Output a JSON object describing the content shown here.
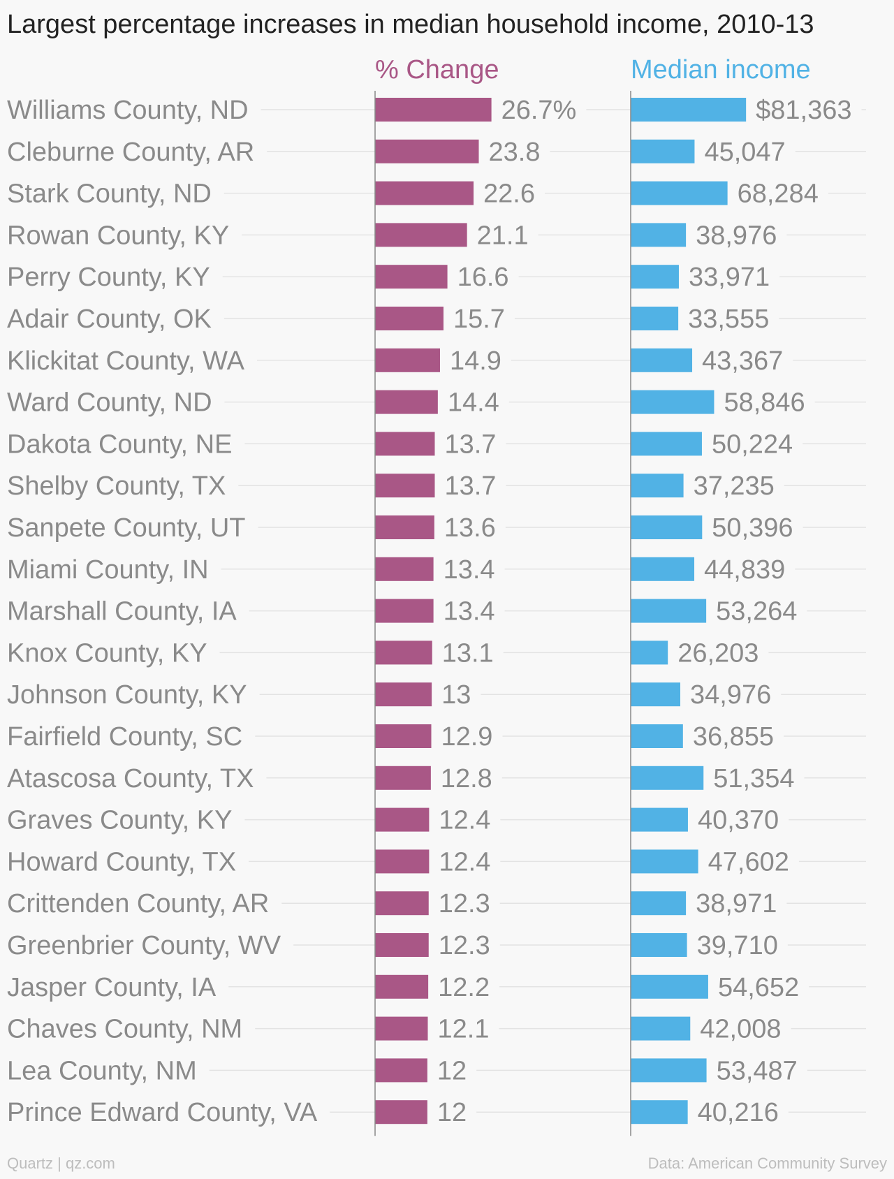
{
  "chart_data": {
    "type": "bar",
    "title": "Largest percentage increases in median household income, 2010-13",
    "categories": [
      "Williams County, ND",
      "Cleburne County, AR",
      "Stark County, ND",
      "Rowan County, KY",
      "Perry County, KY",
      "Adair County, OK",
      "Klickitat County, WA",
      "Ward County, ND",
      "Dakota County, NE",
      "Shelby County, TX",
      "Sanpete County, UT",
      "Miami County, IN",
      "Marshall County, IA",
      "Knox County, KY",
      "Johnson County, KY",
      "Fairfield County, SC",
      "Atascosa County, TX",
      "Graves County, KY",
      "Howard County, TX",
      "Crittenden County, AR",
      "Greenbrier County, WV",
      "Jasper County, IA",
      "Chaves County, NM",
      "Lea County, NM",
      "Prince Edward County, VA"
    ],
    "series": [
      {
        "name": "% Change",
        "color": "#a95786",
        "values": [
          26.7,
          23.8,
          22.6,
          21.1,
          16.6,
          15.7,
          14.9,
          14.4,
          13.7,
          13.7,
          13.6,
          13.4,
          13.4,
          13.1,
          13,
          12.9,
          12.8,
          12.4,
          12.4,
          12.3,
          12.3,
          12.2,
          12.1,
          12,
          12
        ],
        "labels": [
          "26.7%",
          "23.8",
          "22.6",
          "21.1",
          "16.6",
          "15.7",
          "14.9",
          "14.4",
          "13.7",
          "13.7",
          "13.6",
          "13.4",
          "13.4",
          "13.1",
          "13",
          "12.9",
          "12.8",
          "12.4",
          "12.4",
          "12.3",
          "12.3",
          "12.2",
          "12.1",
          "12",
          "12"
        ]
      },
      {
        "name": "Median income",
        "color": "#51b2e5",
        "values": [
          81363,
          45047,
          68284,
          38976,
          33971,
          33555,
          43367,
          58846,
          50224,
          37235,
          50396,
          44839,
          53264,
          26203,
          34976,
          36855,
          51354,
          40370,
          47602,
          38971,
          39710,
          54652,
          42008,
          53487,
          40216
        ],
        "labels": [
          "$81,363",
          "45,047",
          "68,284",
          "38,976",
          "33,971",
          "33,555",
          "43,367",
          "58,846",
          "50,224",
          "37,235",
          "50,396",
          "44,839",
          "53,264",
          "26,203",
          "34,976",
          "36,855",
          "51,354",
          "40,370",
          "47,602",
          "38,971",
          "39,710",
          "54,652",
          "42,008",
          "53,487",
          "40,216"
        ]
      }
    ],
    "grid": false,
    "legend": "column headers"
  },
  "footer": {
    "source_left": "Quartz | qz.com",
    "source_right": "Data: American Community Survey"
  }
}
